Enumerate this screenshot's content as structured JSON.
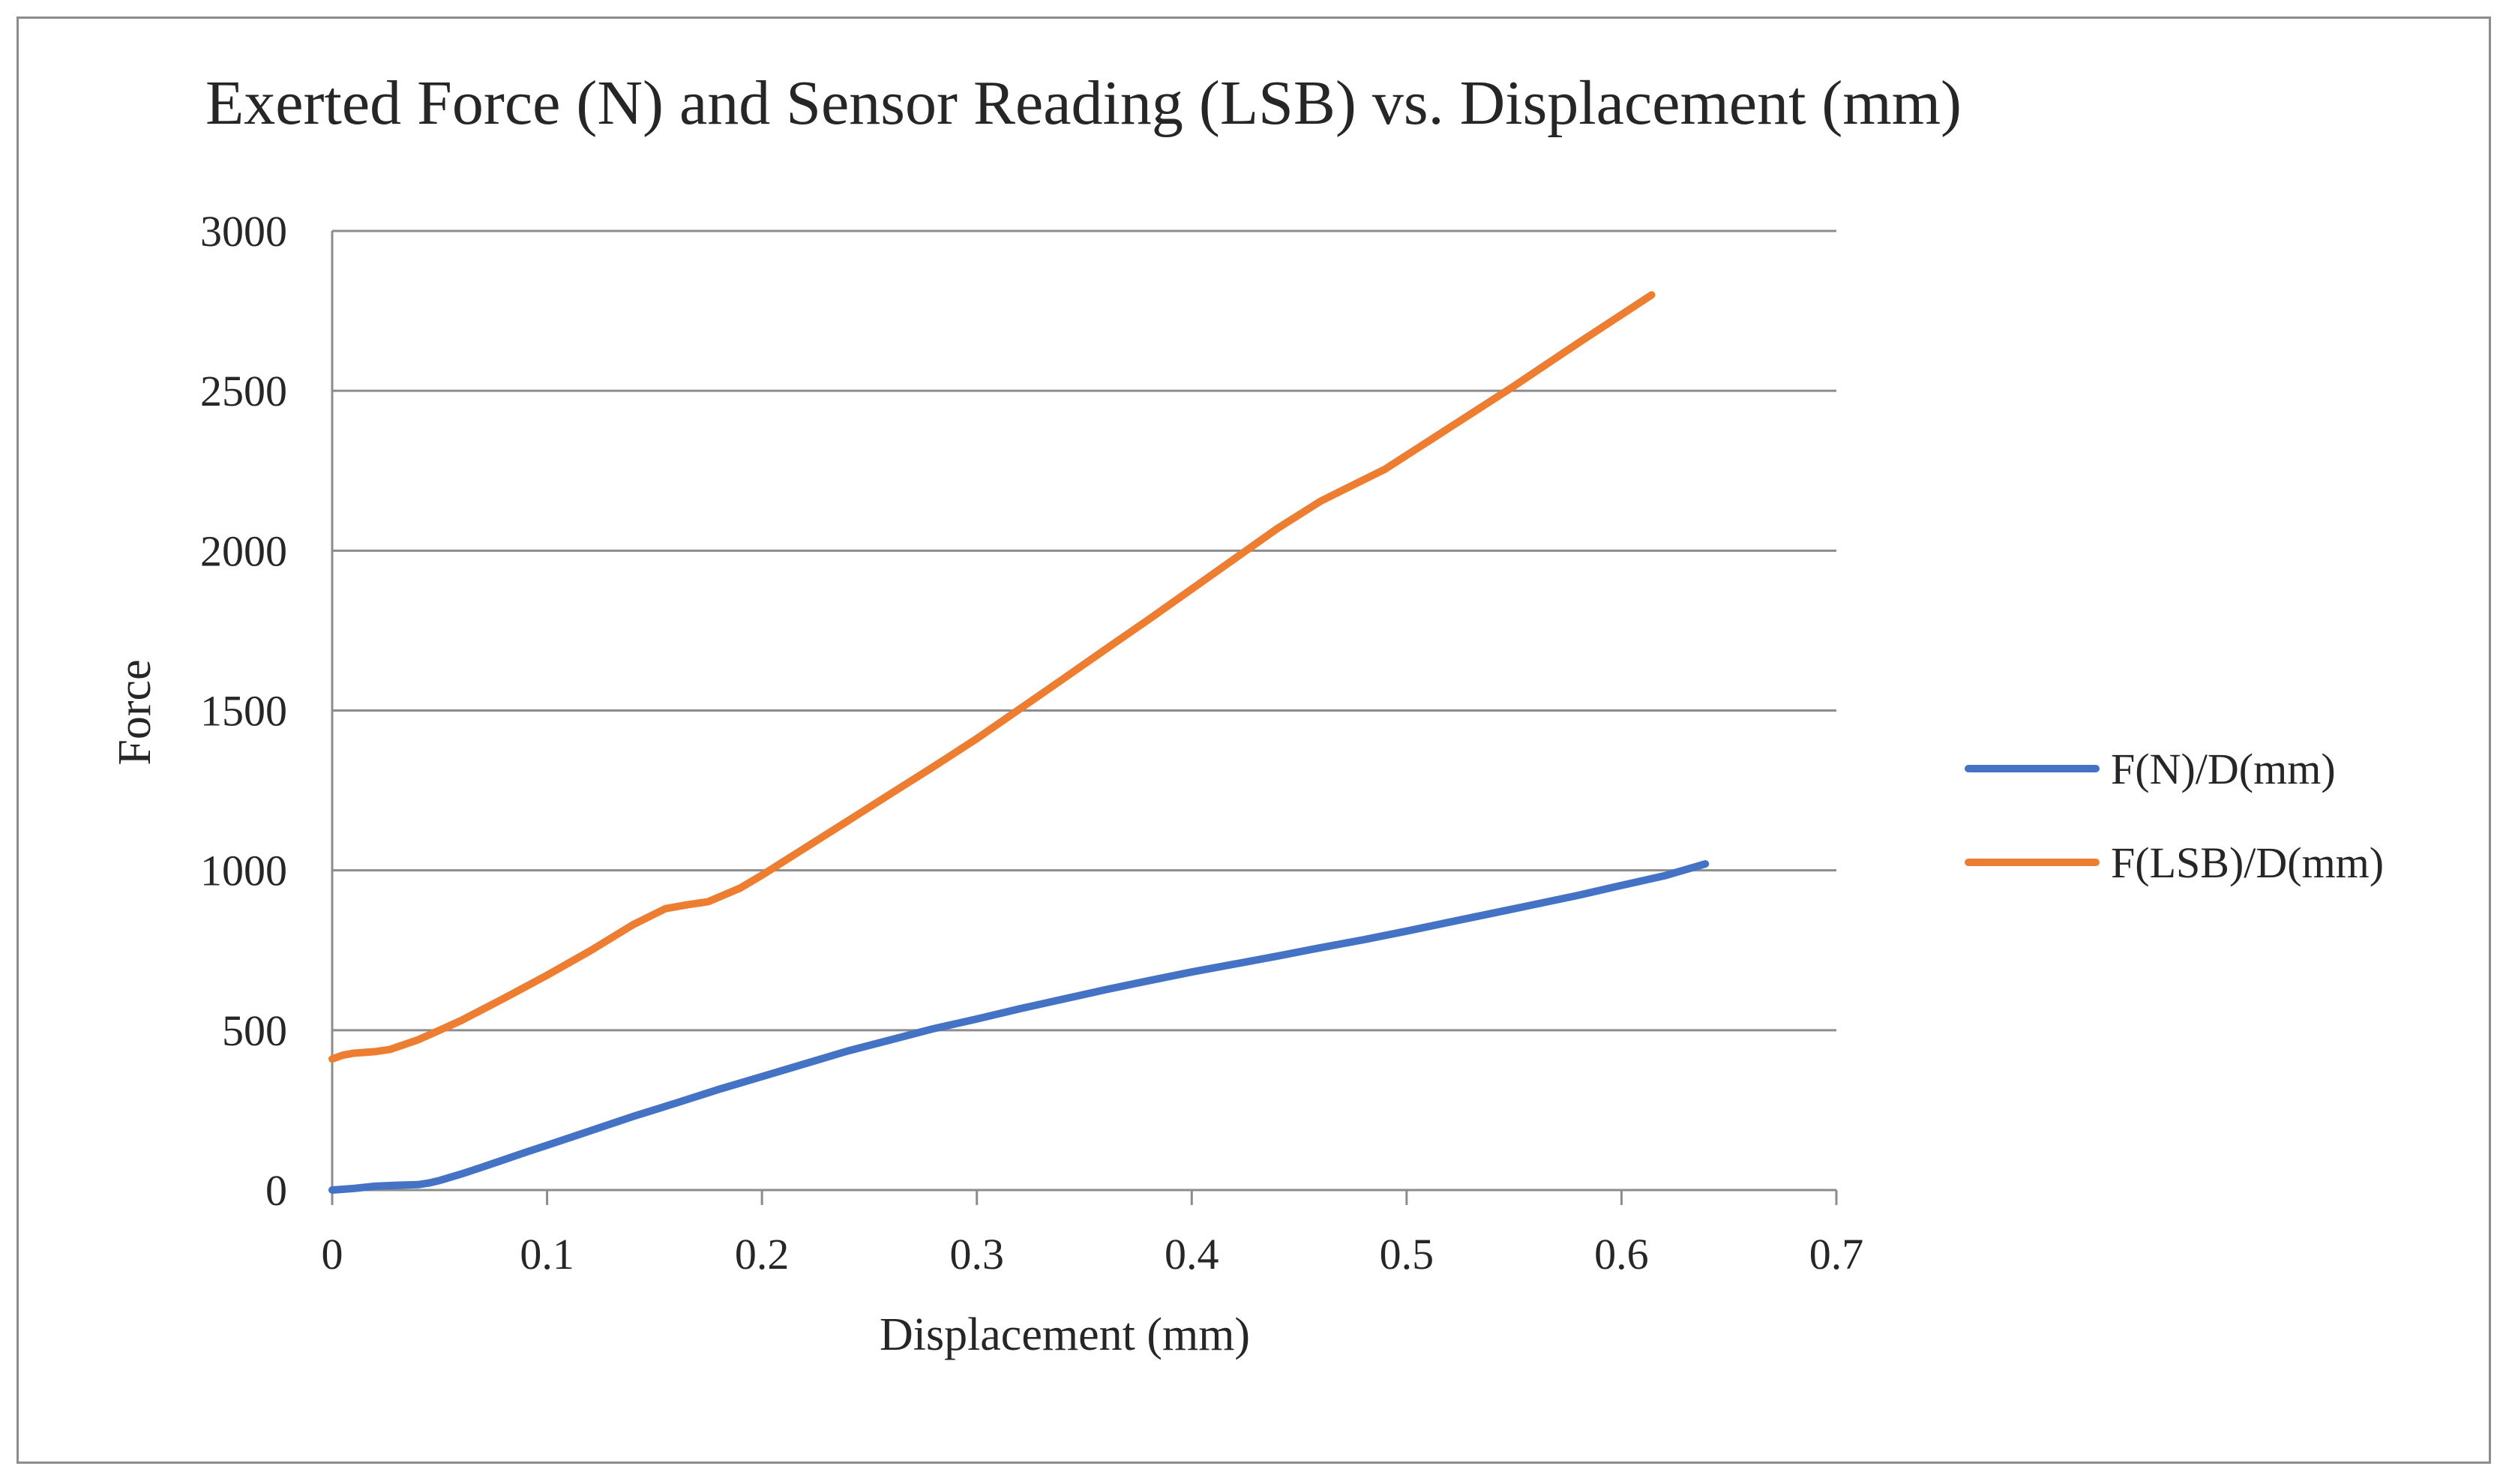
{
  "chart_data": {
    "type": "line",
    "title": "Exerted Force (N) and Sensor Reading (LSB) vs. Displacement (mm)",
    "xlabel": "Displacement (mm)",
    "ylabel": "Force",
    "xlim": [
      0,
      0.7
    ],
    "ylim": [
      0,
      3000
    ],
    "xticks": [
      0,
      0.1,
      0.2,
      0.3,
      0.4,
      0.5,
      0.6,
      0.7
    ],
    "yticks": [
      0,
      500,
      1000,
      1500,
      2000,
      2500,
      3000
    ],
    "xtick_labels": [
      "0",
      "0.1",
      "0.2",
      "0.3",
      "0.4",
      "0.5",
      "0.6",
      "0.7"
    ],
    "ytick_labels": [
      "0",
      "500",
      "1000",
      "1500",
      "2000",
      "2500",
      "3000"
    ],
    "grid": "horizontal",
    "legend_position": "right",
    "series": [
      {
        "name": "F(N)/D(mm)",
        "color": "#4472C4",
        "x": [
          0,
          0.01,
          0.02,
          0.03,
          0.04,
          0.045,
          0.05,
          0.06,
          0.07,
          0.08,
          0.09,
          0.1,
          0.12,
          0.14,
          0.16,
          0.18,
          0.2,
          0.22,
          0.24,
          0.26,
          0.28,
          0.3,
          0.32,
          0.34,
          0.36,
          0.38,
          0.4,
          0.42,
          0.44,
          0.46,
          0.48,
          0.5,
          0.52,
          0.54,
          0.56,
          0.58,
          0.6,
          0.62,
          0.639
        ],
        "y": [
          0,
          5,
          12,
          15,
          17,
          22,
          30,
          50,
          72,
          95,
          118,
          140,
          185,
          230,
          272,
          315,
          355,
          395,
          435,
          470,
          505,
          535,
          567,
          597,
          627,
          655,
          682,
          707,
          732,
          758,
          783,
          810,
          838,
          866,
          894,
          922,
          953,
          983,
          1020
        ]
      },
      {
        "name": "F(LSB)/D(mm)",
        "color": "#ED7D31",
        "x": [
          0,
          0.005,
          0.01,
          0.02,
          0.027,
          0.04,
          0.05,
          0.06,
          0.08,
          0.1,
          0.12,
          0.14,
          0.155,
          0.165,
          0.175,
          0.19,
          0.2,
          0.22,
          0.24,
          0.26,
          0.28,
          0.3,
          0.32,
          0.34,
          0.36,
          0.38,
          0.4,
          0.42,
          0.44,
          0.46,
          0.49,
          0.52,
          0.55,
          0.58,
          0.614
        ],
        "y": [
          410,
          422,
          428,
          433,
          440,
          470,
          500,
          530,
          600,
          672,
          748,
          830,
          880,
          892,
          902,
          945,
          985,
          1070,
          1155,
          1240,
          1325,
          1412,
          1505,
          1598,
          1692,
          1785,
          1880,
          1975,
          2070,
          2155,
          2255,
          2385,
          2515,
          2650,
          2800
        ]
      }
    ]
  }
}
